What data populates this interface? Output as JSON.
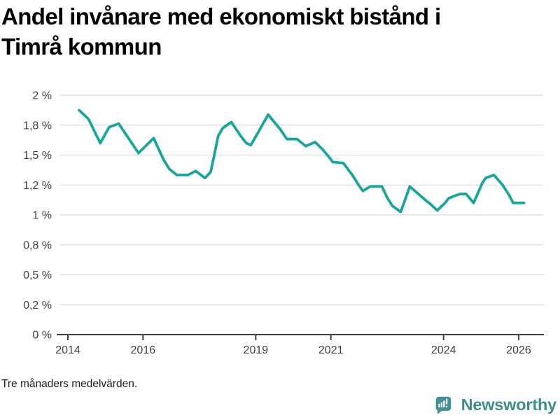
{
  "title_lines": [
    "Andel invånare med ekonomiskt bistånd i",
    "Timrå kommun"
  ],
  "footnote": "Tre månaders medelvärden.",
  "branding": {
    "logo_text": "Newsworthy",
    "icon_color": "#459192",
    "text_color": "#3d8d8b"
  },
  "chart_data": {
    "type": "line",
    "title": "Andel invånare med ekonomiskt bistånd i Timrå kommun",
    "unit": "%",
    "grid": true,
    "line_color": "#16a69b",
    "grid_color": "#dcdcdc",
    "axis_color": "#404040",
    "label_color": "#3f3f3f",
    "x_ticks": [
      2014,
      2016,
      2019,
      2021,
      2024,
      2026
    ],
    "x_tick_labels": [
      "2014",
      "2016",
      "2019",
      "2021",
      "2024",
      "2026"
    ],
    "y_ticks": [
      0,
      0.2,
      0.5,
      0.8,
      1,
      1.2,
      1.5,
      1.8,
      2
    ],
    "y_tick_labels": [
      "0 %",
      "0,2 %",
      "0,5 %",
      "0,8 %",
      "1 %",
      "1,2 %",
      "1,5 %",
      "1,8 %",
      "2 %"
    ],
    "x_range": [
      2013.8,
      2026.7
    ],
    "series": [
      {
        "name": "Andel invånare med ekonomiskt bistånd",
        "points": [
          [
            2014.3,
            1.9
          ],
          [
            2014.55,
            1.84
          ],
          [
            2014.86,
            1.62
          ],
          [
            2015.1,
            1.78
          ],
          [
            2015.35,
            1.81
          ],
          [
            2015.88,
            1.52
          ],
          [
            2016.28,
            1.67
          ],
          [
            2016.55,
            1.45
          ],
          [
            2016.7,
            1.36
          ],
          [
            2016.9,
            1.3
          ],
          [
            2017.2,
            1.3
          ],
          [
            2017.4,
            1.34
          ],
          [
            2017.65,
            1.27
          ],
          [
            2017.8,
            1.33
          ],
          [
            2017.88,
            1.47
          ],
          [
            2018.0,
            1.69
          ],
          [
            2018.12,
            1.77
          ],
          [
            2018.35,
            1.82
          ],
          [
            2018.6,
            1.69
          ],
          [
            2018.75,
            1.62
          ],
          [
            2018.87,
            1.6
          ],
          [
            2019.33,
            1.87
          ],
          [
            2019.65,
            1.76
          ],
          [
            2019.83,
            1.66
          ],
          [
            2020.1,
            1.66
          ],
          [
            2020.33,
            1.59
          ],
          [
            2020.58,
            1.63
          ],
          [
            2020.77,
            1.56
          ],
          [
            2020.95,
            1.48
          ],
          [
            2021.05,
            1.43
          ],
          [
            2021.33,
            1.42
          ],
          [
            2021.57,
            1.3
          ],
          [
            2021.74,
            1.2
          ],
          [
            2021.85,
            1.16
          ],
          [
            2022.05,
            1.19
          ],
          [
            2022.36,
            1.19
          ],
          [
            2022.51,
            1.11
          ],
          [
            2022.64,
            1.06
          ],
          [
            2022.86,
            1.02
          ],
          [
            2023.1,
            1.19
          ],
          [
            2023.33,
            1.14
          ],
          [
            2023.51,
            1.1
          ],
          [
            2023.66,
            1.07
          ],
          [
            2023.83,
            1.03
          ],
          [
            2024.04,
            1.08
          ],
          [
            2024.13,
            1.11
          ],
          [
            2024.32,
            1.13
          ],
          [
            2024.45,
            1.14
          ],
          [
            2024.6,
            1.14
          ],
          [
            2024.8,
            1.08
          ],
          [
            2025.03,
            1.22
          ],
          [
            2025.12,
            1.27
          ],
          [
            2025.34,
            1.3
          ],
          [
            2025.57,
            1.2
          ],
          [
            2025.75,
            1.13
          ],
          [
            2025.85,
            1.08
          ],
          [
            2026.14,
            1.08
          ]
        ]
      }
    ]
  }
}
